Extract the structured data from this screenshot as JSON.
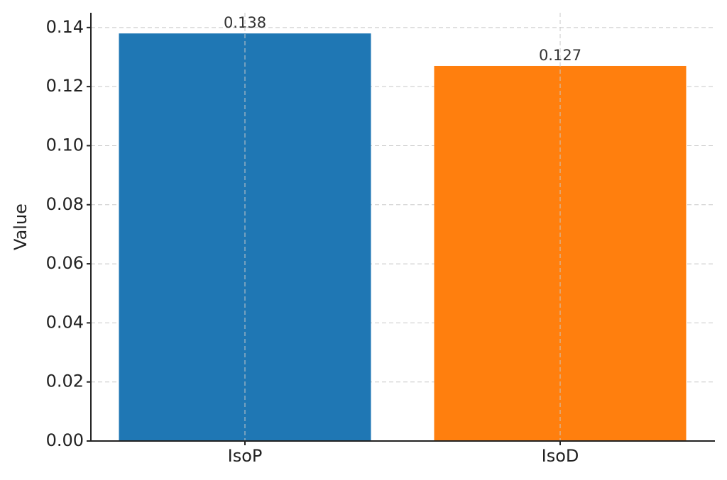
{
  "chart_data": {
    "type": "bar",
    "y_label": "Value",
    "categories": [
      "IsoP",
      "IsoD"
    ],
    "values": [
      0.138,
      0.127
    ],
    "colors": [
      "#1f77b4",
      "#ff7f0e"
    ],
    "ylim": [
      0,
      0.145
    ],
    "yticks": [
      {
        "value": 0,
        "label": "0.00"
      },
      0.02,
      0.04,
      0.06,
      0.08,
      {
        "value": 0.1,
        "label": "0.10"
      },
      0.12,
      0.14
    ],
    "grid": true
  }
}
